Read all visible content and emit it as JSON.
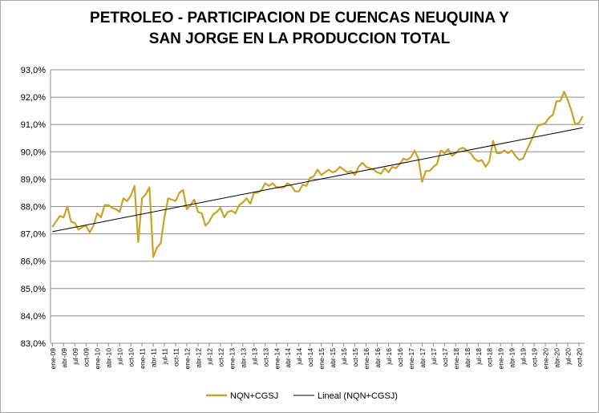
{
  "chart_data": {
    "type": "line",
    "title_line1": "PETROLEO - PARTICIPACION DE CUENCAS NEUQUINA Y",
    "title_line2": "SAN JORGE EN LA PRODUCCION TOTAL",
    "xlabel": "",
    "ylabel": "",
    "ylim": [
      83.0,
      93.0
    ],
    "y_ticks": [
      83,
      84,
      85,
      86,
      87,
      88,
      89,
      90,
      91,
      92,
      93
    ],
    "y_tick_labels": [
      "83,0%",
      "84,0%",
      "85,0%",
      "86,0%",
      "87,0%",
      "88,0%",
      "89,0%",
      "90,0%",
      "91,0%",
      "92,0%",
      "93,0%"
    ],
    "grid": true,
    "legend_position": "bottom",
    "x_tick_labels": [
      "ene-09",
      "abr-09",
      "jul-09",
      "oct-09",
      "ene-10",
      "abr-10",
      "jul-10",
      "oct-10",
      "ene-11",
      "abr-11",
      "jul-11",
      "oct-11",
      "ene-12",
      "abr-12",
      "jul-12",
      "oct-12",
      "ene-13",
      "abr-13",
      "jul-13",
      "oct-13",
      "ene-14",
      "abr-14",
      "jul-14",
      "oct-14",
      "ene-15",
      "abr-15",
      "jul-15",
      "oct-15",
      "ene-16",
      "abr-16",
      "jul-16",
      "oct-16",
      "ene-17",
      "abr-17",
      "jul-17",
      "oct-17",
      "ene-18",
      "abr-18",
      "jul-18",
      "oct-18",
      "ene-19",
      "abr-19",
      "jul-19",
      "oct-19",
      "ene-20",
      "abr-20",
      "jul-20",
      "oct-20"
    ],
    "series": [
      {
        "name": "NQN+CGSJ",
        "color": "#c9a227",
        "values": [
          87.25,
          87.45,
          87.65,
          87.6,
          88.0,
          87.45,
          87.4,
          87.15,
          87.25,
          87.3,
          87.05,
          87.3,
          87.75,
          87.6,
          88.05,
          88.05,
          87.95,
          87.9,
          87.8,
          88.3,
          88.2,
          88.4,
          88.75,
          86.7,
          88.3,
          88.45,
          88.7,
          86.15,
          86.5,
          86.65,
          87.6,
          88.3,
          88.25,
          88.2,
          88.5,
          88.6,
          87.9,
          88.05,
          88.25,
          87.8,
          87.75,
          87.3,
          87.45,
          87.7,
          87.8,
          87.95,
          87.6,
          87.8,
          87.85,
          87.75,
          88.05,
          88.15,
          88.3,
          88.1,
          88.5,
          88.5,
          88.6,
          88.85,
          88.75,
          88.85,
          88.7,
          88.7,
          88.7,
          88.85,
          88.75,
          88.55,
          88.55,
          88.8,
          88.75,
          89.05,
          89.1,
          89.35,
          89.15,
          89.25,
          89.35,
          89.25,
          89.3,
          89.45,
          89.35,
          89.25,
          89.3,
          89.15,
          89.45,
          89.6,
          89.45,
          89.4,
          89.35,
          89.25,
          89.2,
          89.4,
          89.25,
          89.45,
          89.4,
          89.55,
          89.75,
          89.7,
          89.8,
          90.05,
          89.75,
          88.9,
          89.3,
          89.3,
          89.45,
          89.55,
          90.05,
          89.95,
          90.1,
          89.85,
          89.95,
          90.1,
          90.15,
          90.05,
          89.95,
          89.75,
          89.65,
          89.7,
          89.45,
          89.65,
          90.4,
          89.95,
          89.95,
          90.05,
          89.95,
          90.05,
          89.85,
          89.7,
          89.75,
          90.05,
          90.35,
          90.65,
          90.95,
          91.0,
          91.05,
          91.25,
          91.35,
          91.85,
          91.85,
          92.2,
          91.9,
          91.5,
          91.0,
          91.05,
          91.3
        ]
      },
      {
        "name": "Lineal (NQN+CGSJ)",
        "color": "#000000",
        "start": 87.08,
        "end": 90.88
      }
    ]
  }
}
